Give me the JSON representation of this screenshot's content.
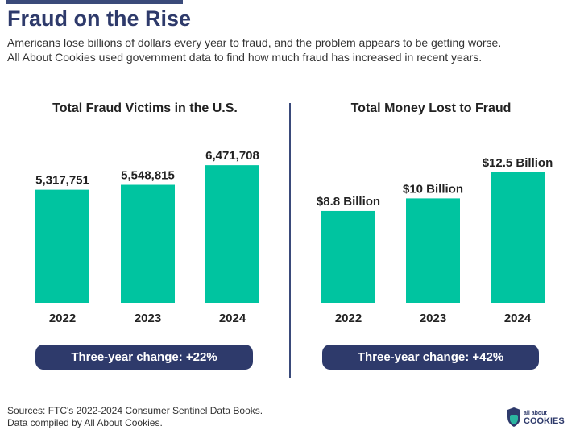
{
  "header": {
    "title": "Fraud on the Rise",
    "subtitle_lines": [
      "Americans lose billions of dollars every year to fraud, and the problem appears to be getting worse.",
      "All About Cookies used government data to find how much fraud has increased in recent years."
    ]
  },
  "chart_data": [
    {
      "type": "bar",
      "title": "Total Fraud Victims in the U.S.",
      "categories": [
        "2022",
        "2023",
        "2024"
      ],
      "values": [
        5317751,
        5548815,
        6471708
      ],
      "data_labels": [
        "5,317,751",
        "5,548,815",
        "6,471,708"
      ],
      "color": "#00c4a0",
      "change_label": "Three-year change: +22%"
    },
    {
      "type": "bar",
      "title": "Total Money Lost to Fraud",
      "categories": [
        "2022",
        "2023",
        "2024"
      ],
      "values": [
        8.8,
        10,
        12.5
      ],
      "unit": "Billion USD",
      "data_labels": [
        "$8.8 Billion",
        "$10 Billion",
        "$12.5 Billion"
      ],
      "color": "#00c4a0",
      "change_label": "Three-year change: +42%"
    }
  ],
  "footer": {
    "sources": [
      "Sources: FTC's 2022-2024 Consumer Sentinel Data Books.",
      "Data compiled by All About Cookies."
    ],
    "logo_text": "all about COOKIES"
  },
  "colors": {
    "accent": "#00c4a0",
    "navy": "#2e3a6b"
  }
}
